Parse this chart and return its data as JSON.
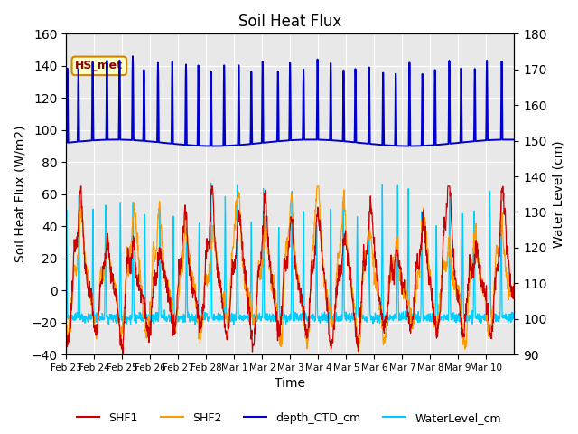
{
  "title": "Soil Heat Flux",
  "ylabel_left": "Soil Heat Flux (W/m2)",
  "ylabel_right": "Water Level (cm)",
  "xlabel": "Time",
  "ylim_left": [
    -40,
    160
  ],
  "ylim_right": [
    90,
    180
  ],
  "annotation_text": "HS_met",
  "colors": {
    "SHF1": "#cc0000",
    "SHF2": "#ff9900",
    "depth_CTD_cm": "#0000cc",
    "WaterLevel_cm": "#00ccff"
  },
  "legend_labels": [
    "SHF1",
    "SHF2",
    "depth_CTD_cm",
    "WaterLevel_cm"
  ],
  "background_color": "#e8e8e8",
  "n_days": 17,
  "pts_per_day": 96,
  "tick_labels": [
    "Feb 23",
    "Feb 24",
    "Feb 25",
    "Feb 26",
    "Feb 27",
    "Feb 28",
    "Mar 1",
    "Mar 2",
    "Mar 3",
    "Mar 4",
    "Mar 5",
    "Mar 6",
    "Mar 7",
    "Mar 8",
    "Mar 9",
    "Mar 10"
  ]
}
